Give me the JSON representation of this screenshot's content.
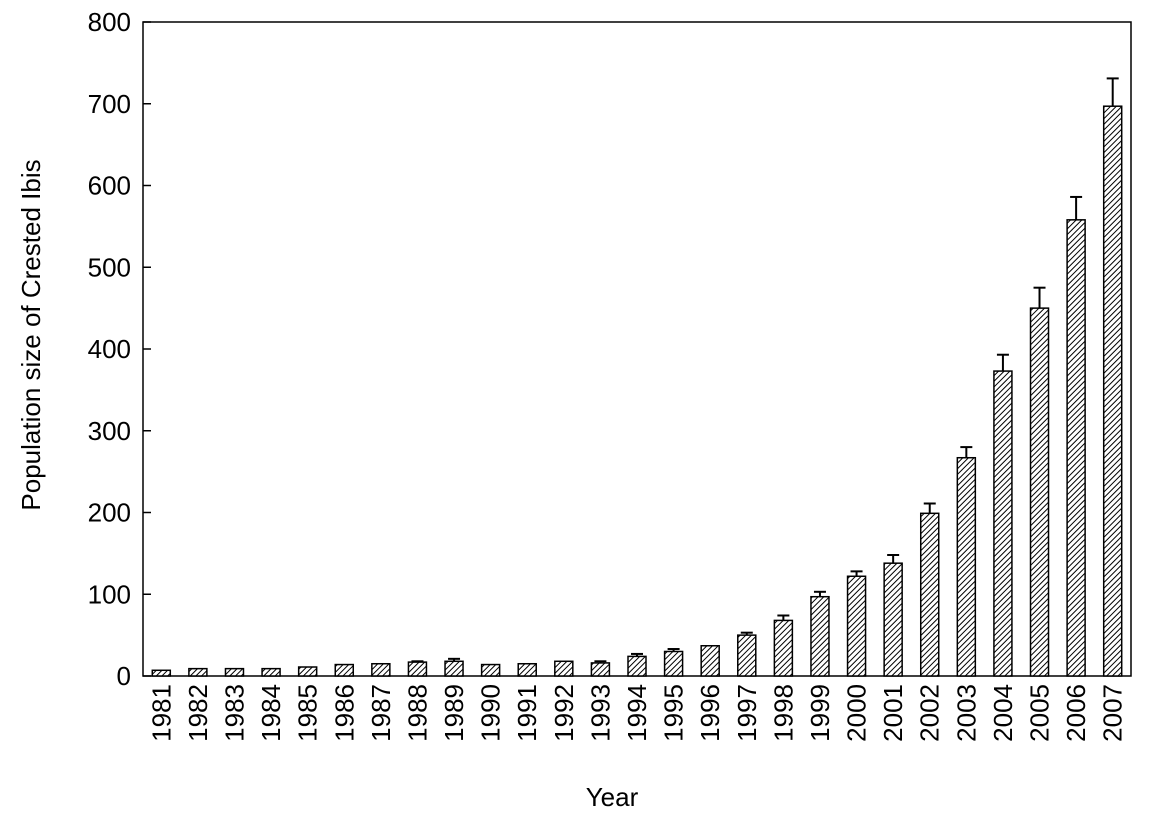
{
  "chart_data": {
    "type": "bar",
    "title": "",
    "xlabel": "Year",
    "ylabel": "Population size of Crested Ibis",
    "ylim": [
      0,
      800
    ],
    "yticks": [
      0,
      100,
      200,
      300,
      400,
      500,
      600,
      700,
      800
    ],
    "grid": false,
    "legend": "none",
    "bar_style": "diagonal hatch, black outline",
    "error_bars": "upper only",
    "categories": [
      "1981",
      "1982",
      "1983",
      "1984",
      "1985",
      "1986",
      "1987",
      "1988",
      "1989",
      "1990",
      "1991",
      "1992",
      "1993",
      "1994",
      "1995",
      "1996",
      "1997",
      "1998",
      "1999",
      "2000",
      "2001",
      "2002",
      "2003",
      "2004",
      "2005",
      "2006",
      "2007"
    ],
    "values": [
      7,
      9,
      9,
      9,
      11,
      14,
      15,
      17,
      18,
      14,
      15,
      18,
      16,
      24,
      30,
      37,
      50,
      68,
      97,
      122,
      138,
      199,
      267,
      373,
      450,
      558,
      697
    ],
    "errors": [
      0,
      0,
      0,
      0,
      0,
      0,
      0,
      1,
      3,
      0,
      0,
      0,
      2,
      3,
      3,
      0,
      3,
      6,
      6,
      6,
      10,
      12,
      13,
      20,
      25,
      28,
      34
    ]
  },
  "colors": {
    "bar_fill": "#ffffff",
    "hatch": "#000000",
    "axis": "#000000"
  }
}
